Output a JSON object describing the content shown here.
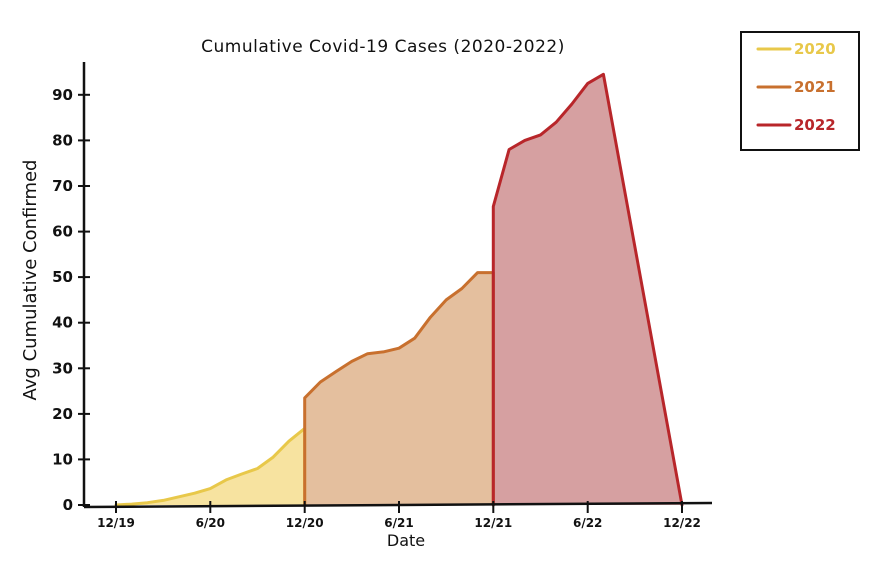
{
  "chart_data": {
    "type": "area",
    "title": "Cumulative Covid-19 Cases (2020-2022)",
    "xlabel": "Date",
    "ylabel": "Avg Cumulative Confirmed",
    "xlim": [
      "2019-12",
      "2022-12"
    ],
    "ylim": [
      0,
      95
    ],
    "x_ticks": [
      "12/19",
      "6/20",
      "12/20",
      "6/21",
      "12/21",
      "6/22",
      "12/22"
    ],
    "y_ticks": [
      0,
      10,
      20,
      30,
      40,
      50,
      60,
      70,
      80,
      90
    ],
    "grid": false,
    "legend_position": "top-right",
    "series": [
      {
        "name": "2020",
        "color": "#E8C84A",
        "fill": "#F7E3A0",
        "points": [
          [
            "2019-12",
            0
          ],
          [
            "2020-01",
            0.2
          ],
          [
            "2020-02",
            0.5
          ],
          [
            "2020-03",
            1
          ],
          [
            "2020-04",
            1.8
          ],
          [
            "2020-05",
            2.6
          ],
          [
            "2020-06",
            3.6
          ],
          [
            "2020-07",
            5.5
          ],
          [
            "2020-08",
            6.8
          ],
          [
            "2020-09",
            8
          ],
          [
            "2020-10",
            10.5
          ],
          [
            "2020-11",
            14
          ],
          [
            "2020-12",
            16.8
          ]
        ]
      },
      {
        "name": "2021",
        "color": "#C8702E",
        "fill": "#E4BF9E",
        "points": [
          [
            "2020-12",
            23.5
          ],
          [
            "2021-01",
            27
          ],
          [
            "2021-02",
            29.3
          ],
          [
            "2021-03",
            31.5
          ],
          [
            "2021-04",
            33.2
          ],
          [
            "2021-05",
            33.6
          ],
          [
            "2021-06",
            34.4
          ],
          [
            "2021-07",
            36.6
          ],
          [
            "2021-08",
            41.2
          ],
          [
            "2021-09",
            45
          ],
          [
            "2021-10",
            47.5
          ],
          [
            "2021-11",
            51
          ],
          [
            "2021-12",
            51
          ]
        ]
      },
      {
        "name": "2022",
        "color": "#B8262A",
        "fill": "#D6A0A1",
        "points": [
          [
            "2021-12",
            65.5
          ],
          [
            "2022-01",
            78
          ],
          [
            "2022-02",
            80
          ],
          [
            "2022-03",
            81.2
          ],
          [
            "2022-04",
            84
          ],
          [
            "2022-05",
            88
          ],
          [
            "2022-06",
            92.5
          ],
          [
            "2022-07",
            94.5
          ],
          [
            "2022-12",
            0
          ]
        ]
      }
    ]
  }
}
